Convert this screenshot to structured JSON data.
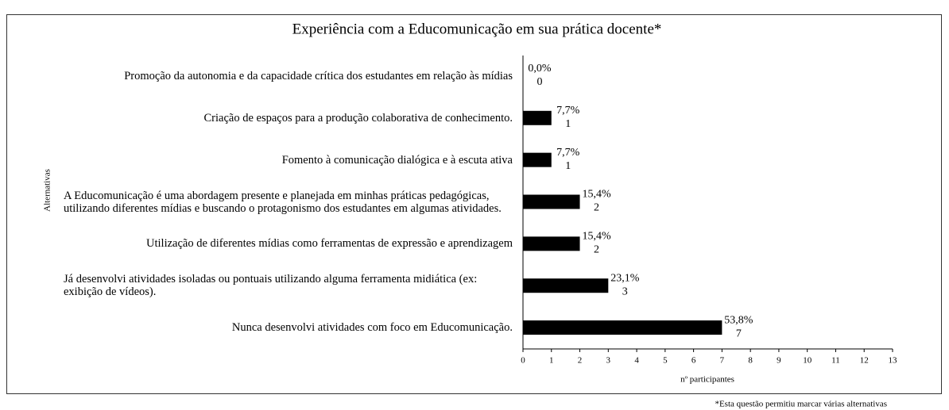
{
  "chart_data": {
    "type": "bar",
    "orientation": "horizontal",
    "title": "Experiência com a Educomunicação em sua prática docente*",
    "categories": [
      "Promoção da autonomia e da capacidade crítica dos estudantes em relação às mídias",
      "Criação de espaços para a produção colaborativa de conhecimento.",
      "Fomento à comunicação dialógica e à escuta ativa",
      "A Educomunicação é uma abordagem presente e planejada em minhas práticas pedagógicas, utilizando diferentes mídias e buscando o protagonismo dos estudantes em algumas atividades.",
      "Utilização de diferentes mídias como ferramentas de expressão e aprendizagem",
      "Já desenvolvi atividades isoladas ou pontuais utilizando alguma ferramenta midiática (ex: exibição de vídeos).",
      "Nunca desenvolvi atividades com foco em Educomunicação."
    ],
    "values": [
      0,
      1,
      1,
      2,
      2,
      3,
      7
    ],
    "percent_labels": [
      "0,0%",
      "7,7%",
      "7,7%",
      "15,4%",
      "15,4%",
      "23,1%",
      "53,8%"
    ],
    "color": "#000000",
    "xlim": [
      0,
      13
    ],
    "xticks": [
      0,
      1,
      2,
      3,
      4,
      5,
      6,
      7,
      8,
      9,
      10,
      11,
      12,
      13
    ],
    "xlabel": "nº participantes",
    "ylabel": "Alternativas",
    "footnote": "*Esta questão permitiu marcar várias alternativas"
  }
}
